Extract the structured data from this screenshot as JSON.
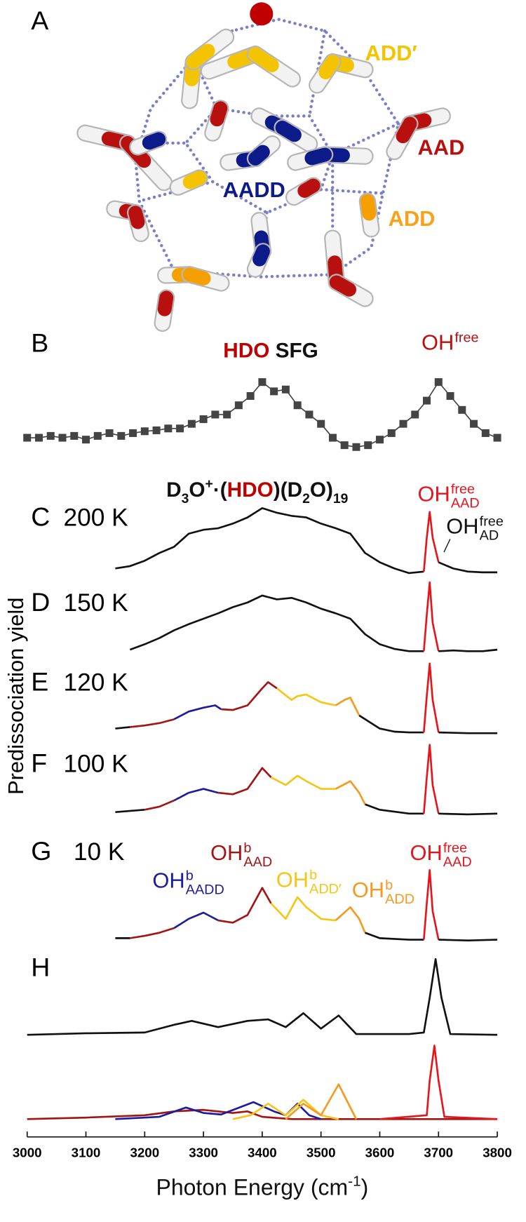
{
  "illustration": {
    "panel": "A",
    "labels": [
      {
        "text": "ADD′",
        "color": "#f5c400"
      },
      {
        "text": "AAD",
        "color": "#b80f0f"
      },
      {
        "text": "AADD",
        "color": "#0c1a8a"
      },
      {
        "text": "ADD",
        "color": "#f7a21b"
      }
    ]
  },
  "ylabel": "Predissociation yield",
  "chart_data": [
    {
      "type": "line",
      "panel": "B",
      "markers": true,
      "title_parts": [
        {
          "text": "HDO",
          "color": "#c00000"
        },
        {
          "text": " SFG",
          "color": "#111111"
        }
      ],
      "annotations": [
        {
          "base": "OH",
          "sup": "free",
          "color": "#b80f0f"
        }
      ],
      "xlim": [
        3000,
        3800
      ],
      "ylim": [
        0,
        1
      ],
      "series": [
        {
          "color": "#444444",
          "x": [
            3000,
            3020,
            3040,
            3060,
            3080,
            3100,
            3120,
            3140,
            3160,
            3180,
            3200,
            3220,
            3240,
            3260,
            3280,
            3300,
            3320,
            3340,
            3360,
            3380,
            3400,
            3420,
            3440,
            3460,
            3480,
            3500,
            3520,
            3540,
            3560,
            3580,
            3600,
            3620,
            3640,
            3660,
            3680,
            3700,
            3720,
            3740,
            3760,
            3780,
            3800
          ],
          "values": [
            0.2,
            0.2,
            0.22,
            0.2,
            0.22,
            0.18,
            0.22,
            0.25,
            0.22,
            0.25,
            0.27,
            0.28,
            0.3,
            0.3,
            0.35,
            0.4,
            0.45,
            0.45,
            0.55,
            0.65,
            0.8,
            0.7,
            0.72,
            0.55,
            0.45,
            0.35,
            0.2,
            0.12,
            0.1,
            0.12,
            0.18,
            0.25,
            0.35,
            0.45,
            0.6,
            0.8,
            0.65,
            0.5,
            0.35,
            0.25,
            0.2
          ]
        }
      ]
    },
    {
      "type": "line",
      "panel": "C",
      "label": "200 K",
      "title_parts": [
        {
          "text": "D"
        },
        {
          "text": "3",
          "sub": true
        },
        {
          "text": "O"
        },
        {
          "text": "+",
          "sup": true
        },
        {
          "text": "·("
        },
        {
          "text": "HDO",
          "color": "#c00000"
        },
        {
          "text": ")(D"
        },
        {
          "text": "2",
          "sub": true
        },
        {
          "text": "O)"
        },
        {
          "text": "19",
          "sub": true
        }
      ],
      "annotations": [
        {
          "base": "OH",
          "sup": "free",
          "sub": "AAD",
          "color": "#e8141b"
        },
        {
          "base": "OH",
          "sup": "free",
          "sub": "AD",
          "color": "#111111"
        }
      ],
      "xlim": [
        3000,
        3800
      ],
      "ylim": [
        0,
        1
      ],
      "series": [
        {
          "color": "#111111",
          "x": [
            3150,
            3175,
            3200,
            3225,
            3250,
            3275,
            3300,
            3325,
            3350,
            3375,
            3400,
            3425,
            3450,
            3475,
            3500,
            3525,
            3550,
            3575,
            3600,
            3625,
            3650,
            3675
          ],
          "values": [
            0.1,
            0.13,
            0.2,
            0.3,
            0.38,
            0.55,
            0.6,
            0.62,
            0.68,
            0.76,
            0.88,
            0.82,
            0.78,
            0.76,
            0.68,
            0.62,
            0.55,
            0.3,
            0.18,
            0.1,
            0.04,
            0.06
          ]
        },
        {
          "color": "#e8141b",
          "x": [
            3675,
            3680,
            3685,
            3690,
            3700
          ],
          "values": [
            0.06,
            0.5,
            0.83,
            0.5,
            0.18
          ]
        },
        {
          "color": "#111111",
          "x": [
            3700,
            3725,
            3750,
            3775,
            3800
          ],
          "values": [
            0.18,
            0.1,
            0.06,
            0.05,
            0.05
          ]
        }
      ]
    },
    {
      "type": "line",
      "panel": "D",
      "label": "150 K",
      "xlim": [
        3000,
        3800
      ],
      "ylim": [
        0,
        1
      ],
      "series": [
        {
          "color": "#111111",
          "x": [
            3175,
            3200,
            3225,
            3250,
            3275,
            3300,
            3325,
            3350,
            3375,
            3400,
            3425,
            3450,
            3475,
            3500,
            3525,
            3550,
            3575,
            3600,
            3625,
            3650,
            3675
          ],
          "values": [
            0.05,
            0.12,
            0.2,
            0.3,
            0.38,
            0.45,
            0.52,
            0.6,
            0.66,
            0.75,
            0.7,
            0.72,
            0.66,
            0.58,
            0.52,
            0.45,
            0.25,
            0.12,
            0.06,
            0.03,
            0.03
          ]
        },
        {
          "color": "#e8141b",
          "x": [
            3675,
            3680,
            3685,
            3690,
            3700
          ],
          "values": [
            0.03,
            0.5,
            0.92,
            0.4,
            0.03
          ]
        },
        {
          "color": "#111111",
          "x": [
            3700,
            3725,
            3750,
            3775,
            3800
          ],
          "values": [
            0.03,
            0.04,
            0.03,
            0.03,
            0.05
          ]
        }
      ]
    },
    {
      "type": "line",
      "panel": "E",
      "label": "120 K",
      "xlim": [
        3000,
        3800
      ],
      "ylim": [
        0,
        1
      ],
      "series": [
        {
          "color": "#111111",
          "x": [
            3150,
            3175
          ],
          "values": [
            0.08,
            0.1
          ]
        },
        {
          "color": "#a31515",
          "x": [
            3175,
            3200,
            3225,
            3250
          ],
          "values": [
            0.1,
            0.12,
            0.15,
            0.2
          ]
        },
        {
          "color": "#1c1c9e",
          "x": [
            3250,
            3275,
            3300,
            3320,
            3330
          ],
          "values": [
            0.2,
            0.3,
            0.35,
            0.38,
            0.33
          ]
        },
        {
          "color": "#a31515",
          "x": [
            3330,
            3350,
            3375,
            3400,
            3410,
            3425
          ],
          "values": [
            0.33,
            0.32,
            0.38,
            0.6,
            0.68,
            0.6
          ]
        },
        {
          "color": "#f5c518",
          "x": [
            3425,
            3450,
            3460,
            3475,
            3500,
            3525
          ],
          "values": [
            0.6,
            0.45,
            0.5,
            0.52,
            0.42,
            0.38
          ]
        },
        {
          "color": "#f59a1e",
          "x": [
            3525,
            3540,
            3550,
            3565
          ],
          "values": [
            0.38,
            0.45,
            0.48,
            0.25
          ]
        },
        {
          "color": "#111111",
          "x": [
            3565,
            3600,
            3625,
            3650,
            3675
          ],
          "values": [
            0.25,
            0.08,
            0.04,
            0.03,
            0.03
          ]
        },
        {
          "color": "#e8141b",
          "x": [
            3675,
            3680,
            3685,
            3690,
            3700
          ],
          "values": [
            0.03,
            0.5,
            0.92,
            0.45,
            0.03
          ]
        },
        {
          "color": "#111111",
          "x": [
            3700,
            3750,
            3800
          ],
          "values": [
            0.03,
            0.02,
            0.02
          ]
        }
      ]
    },
    {
      "type": "line",
      "panel": "F",
      "label": "100 K",
      "xlim": [
        3000,
        3800
      ],
      "ylim": [
        0,
        1
      ],
      "series": [
        {
          "color": "#111111",
          "x": [
            3150,
            3200
          ],
          "values": [
            0.05,
            0.08
          ]
        },
        {
          "color": "#a31515",
          "x": [
            3200,
            3225,
            3250
          ],
          "values": [
            0.08,
            0.12,
            0.2
          ]
        },
        {
          "color": "#1c1c9e",
          "x": [
            3250,
            3275,
            3300,
            3325
          ],
          "values": [
            0.2,
            0.3,
            0.35,
            0.3
          ]
        },
        {
          "color": "#a31515",
          "x": [
            3325,
            3350,
            3375,
            3400,
            3415
          ],
          "values": [
            0.3,
            0.28,
            0.35,
            0.62,
            0.5
          ]
        },
        {
          "color": "#f5c518",
          "x": [
            3415,
            3440,
            3460,
            3475,
            3500,
            3525
          ],
          "values": [
            0.5,
            0.4,
            0.52,
            0.45,
            0.35,
            0.35
          ]
        },
        {
          "color": "#f59a1e",
          "x": [
            3525,
            3550,
            3565,
            3575
          ],
          "values": [
            0.35,
            0.45,
            0.3,
            0.15
          ]
        },
        {
          "color": "#111111",
          "x": [
            3575,
            3600,
            3650,
            3675
          ],
          "values": [
            0.15,
            0.08,
            0.03,
            0.03
          ]
        },
        {
          "color": "#e8141b",
          "x": [
            3675,
            3680,
            3685,
            3690,
            3700
          ],
          "values": [
            0.03,
            0.5,
            0.92,
            0.4,
            0.03
          ]
        },
        {
          "color": "#111111",
          "x": [
            3700,
            3750,
            3800
          ],
          "values": [
            0.03,
            0.02,
            0.03
          ]
        }
      ]
    },
    {
      "type": "line",
      "panel": "G",
      "label": "10 K",
      "xlim": [
        3000,
        3800
      ],
      "ylim": [
        0,
        1
      ],
      "annotations": [
        {
          "base": "OH",
          "sup": "b",
          "sub": "AADD",
          "color": "#1c1c9e"
        },
        {
          "base": "OH",
          "sup": "b",
          "sub": "AAD",
          "color": "#a31515"
        },
        {
          "base": "OH",
          "sup": "b",
          "sub": "ADD′",
          "color": "#f5c518"
        },
        {
          "base": "OH",
          "sup": "b",
          "sub": "ADD",
          "color": "#f59a1e"
        },
        {
          "base": "OH",
          "sup": "free",
          "sub": "AAD",
          "color": "#e8141b"
        }
      ],
      "series": [
        {
          "color": "#111111",
          "x": [
            3150,
            3175
          ],
          "values": [
            0.05,
            0.05
          ]
        },
        {
          "color": "#a31515",
          "x": [
            3175,
            3200,
            3225,
            3250
          ],
          "values": [
            0.05,
            0.08,
            0.12,
            0.18
          ]
        },
        {
          "color": "#1c1c9e",
          "x": [
            3250,
            3275,
            3300,
            3325
          ],
          "values": [
            0.18,
            0.3,
            0.38,
            0.28
          ]
        },
        {
          "color": "#a31515",
          "x": [
            3325,
            3350,
            3375,
            3400,
            3415
          ],
          "values": [
            0.28,
            0.25,
            0.35,
            0.7,
            0.5
          ]
        },
        {
          "color": "#f5c518",
          "x": [
            3415,
            3440,
            3460,
            3475,
            3500,
            3525
          ],
          "values": [
            0.5,
            0.3,
            0.58,
            0.45,
            0.3,
            0.28
          ]
        },
        {
          "color": "#f59a1e",
          "x": [
            3525,
            3550,
            3565,
            3575
          ],
          "values": [
            0.28,
            0.45,
            0.3,
            0.12
          ]
        },
        {
          "color": "#111111",
          "x": [
            3575,
            3600,
            3650,
            3675
          ],
          "values": [
            0.12,
            0.05,
            0.03,
            0.03
          ]
        },
        {
          "color": "#e8141b",
          "x": [
            3675,
            3680,
            3685,
            3690,
            3700
          ],
          "values": [
            0.03,
            0.5,
            0.93,
            0.4,
            0.03
          ]
        },
        {
          "color": "#111111",
          "x": [
            3700,
            3750,
            3800
          ],
          "values": [
            0.03,
            0.02,
            0.03
          ]
        }
      ]
    },
    {
      "type": "line",
      "panel": "H",
      "xlim": [
        3000,
        3800
      ],
      "ylim": [
        0,
        1
      ],
      "series": [
        {
          "color": "#111111",
          "x": [
            3000,
            3100,
            3200,
            3250,
            3280,
            3325,
            3375,
            3410,
            3440,
            3470,
            3500,
            3530,
            3560,
            3650,
            3675,
            3685,
            3695,
            3705,
            3720,
            3800
          ],
          "values": [
            0.02,
            0.04,
            0.05,
            0.15,
            0.2,
            0.12,
            0.2,
            0.22,
            0.12,
            0.3,
            0.1,
            0.27,
            0.03,
            0.03,
            0.05,
            0.5,
            1.0,
            0.5,
            0.03,
            0.02
          ]
        }
      ]
    },
    {
      "type": "line",
      "xlim": [
        3000,
        3800
      ],
      "ylim": [
        0,
        1
      ],
      "xticks": [
        3000,
        3100,
        3200,
        3300,
        3400,
        3500,
        3600,
        3700,
        3800
      ],
      "xlabel_parts": [
        {
          "text": "Photon Energy (cm"
        },
        {
          "text": "-1",
          "sup": true
        },
        {
          "text": ")"
        }
      ],
      "series": [
        {
          "color": "#a31515",
          "x": [
            3000,
            3100,
            3200,
            3250,
            3300,
            3350,
            3375,
            3400,
            3450,
            3800
          ],
          "values": [
            0,
            0.02,
            0.05,
            0.1,
            0.12,
            0.08,
            0.1,
            0.03,
            0,
            0
          ]
        },
        {
          "color": "#1c1c9e",
          "x": [
            3150,
            3225,
            3270,
            3300,
            3330,
            3385,
            3420,
            3440,
            3460,
            3480,
            3500
          ],
          "values": [
            0,
            0.03,
            0.15,
            0.08,
            0.06,
            0.22,
            0.1,
            0.05,
            0.2,
            0.05,
            0
          ]
        },
        {
          "color": "#f5c518",
          "x": [
            3350,
            3380,
            3410,
            3440,
            3470,
            3500,
            3530
          ],
          "values": [
            0,
            0.05,
            0.2,
            0.05,
            0.25,
            0.05,
            0
          ]
        },
        {
          "color": "#f59a1e",
          "x": [
            3440,
            3470,
            3500,
            3530,
            3560
          ],
          "values": [
            0,
            0.2,
            0.05,
            0.45,
            0
          ]
        },
        {
          "color": "#e8141b",
          "x": [
            3600,
            3680,
            3685,
            3693,
            3700,
            3710,
            3800
          ],
          "values": [
            0,
            0.05,
            0.5,
            0.95,
            0.5,
            0.03,
            0
          ]
        }
      ]
    }
  ]
}
